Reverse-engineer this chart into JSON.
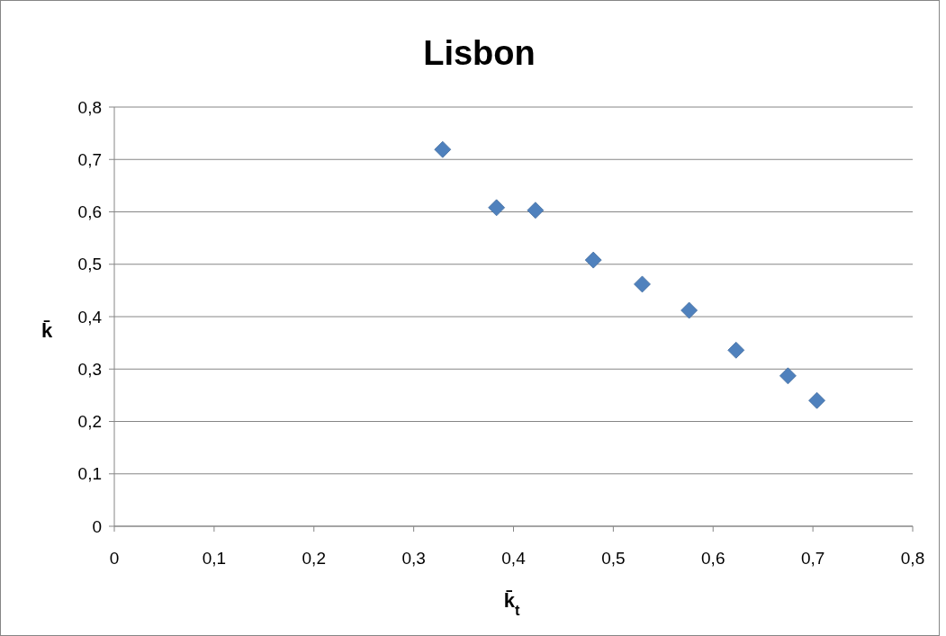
{
  "chart_data": {
    "type": "scatter",
    "title": "Lisbon",
    "xlabel": "k̄$_{t}$",
    "ylabel": "k̄",
    "x": [
      0.329,
      0.383,
      0.422,
      0.48,
      0.529,
      0.576,
      0.623,
      0.675,
      0.704
    ],
    "series": [
      {
        "color": "#4f81bd",
        "values": [
          0.719,
          0.608,
          0.603,
          0.508,
          0.462,
          0.412,
          0.336,
          0.287,
          0.24
        ]
      }
    ],
    "xlim": [
      0,
      0.8
    ],
    "ylim": [
      0,
      0.8
    ],
    "xticks": [
      0,
      {
        "value": 0.1,
        "label": "0,1"
      },
      {
        "value": 0.2,
        "label": "0,2"
      },
      {
        "value": 0.3,
        "label": "0,3"
      },
      {
        "value": 0.4,
        "label": "0,4"
      },
      {
        "value": 0.5,
        "label": "0,5"
      },
      {
        "value": 0.6,
        "label": "0,6"
      },
      {
        "value": 0.7,
        "label": "0,7"
      },
      {
        "value": 0.8,
        "label": "0,8"
      }
    ],
    "yticks": [
      0,
      {
        "value": 0.1,
        "label": "0,1"
      },
      {
        "value": 0.2,
        "label": "0,2"
      },
      {
        "value": 0.3,
        "label": "0,3"
      },
      {
        "value": 0.4,
        "label": "0,4"
      },
      {
        "value": 0.5,
        "label": "0,5"
      },
      {
        "value": 0.6,
        "label": "0,6"
      },
      {
        "value": 0.7,
        "label": "0,7"
      },
      {
        "value": 0.8,
        "label": "0,8"
      }
    ],
    "grid": "y",
    "marker": "diamond"
  }
}
